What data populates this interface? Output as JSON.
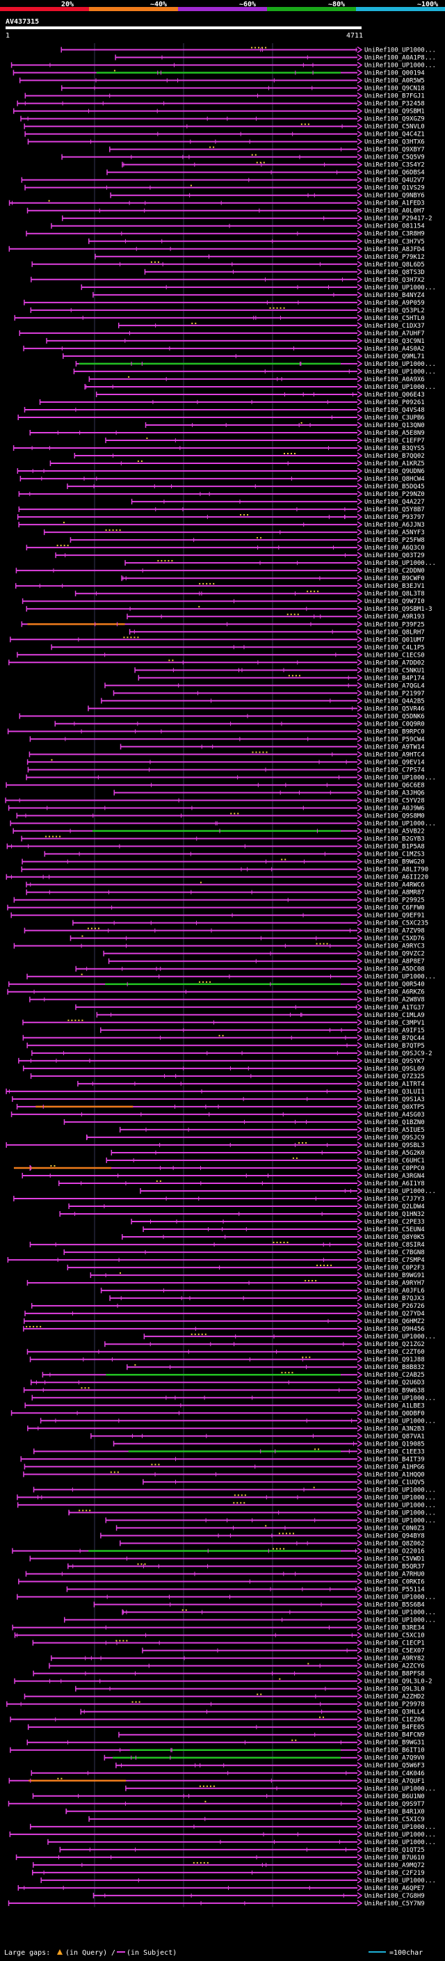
{
  "chart_data": {
    "type": "alignment-coverage",
    "title": "AV437315",
    "scale": {
      "start_label": "1",
      "end_label": "4711",
      "min": 1,
      "max": 4711
    },
    "identity_legend": [
      {
        "label": "20%",
        "color": "#e8102a"
      },
      {
        "label": "~40%",
        "color": "#f07c1c"
      },
      {
        "label": "~60%",
        "color": "#a02bd1"
      },
      {
        "label": "~80%",
        "color": "#1aa81a"
      },
      {
        "label": "~100%",
        "color": "#1fb2d8"
      }
    ],
    "hits": [
      "UniRef100_UP1000...",
      "UniRef100_A0A1P8...",
      "UniRef100_UP1000...",
      "UniRef100_Q00194",
      "UniRef100_A0R5W5",
      "UniRef100_Q9CN18",
      "UniRef100_B7FGJ1",
      "UniRef100_P32458",
      "UniRef100_Q9SBM1",
      "UniRef100_Q9XGZ9",
      "UniRef100_C5NVL0",
      "UniRef100_Q4C4Z1",
      "UniRef100_Q3HTX6",
      "UniRef100_Q9XBY7",
      "UniRef100_C5Q5V9",
      "UniRef100_C3S4Y2",
      "UniRef100_Q6DBS4",
      "UniRef100_Q4U2V7",
      "UniRef100_Q1VS29",
      "UniRef100_Q9NBY6",
      "UniRef100_A1FED3",
      "UniRef100_A0L0H7",
      "UniRef100_P29417-2",
      "UniRef100_O81154",
      "UniRef100_C3R8H9",
      "UniRef100_C3H7V5",
      "UniRef100_A8JFD4",
      "UniRef100_P79K12",
      "UniRef100_Q8L6D5",
      "UniRef100_Q8TS3D",
      "UniRef100_Q3H7X2",
      "UniRef100_UP1000...",
      "UniRef100_B4NYZ4",
      "UniRef100_A9P059",
      "UniRef100_Q53PL2",
      "UniRef100_C5HTL0",
      "UniRef100_C1DX37",
      "UniRef100_A7UHF7",
      "UniRef100_Q3C9N1",
      "UniRef100_A4S0A2",
      "UniRef100_Q9ML71",
      "UniRef100_UP1000...",
      "UniRef100_UP1000...",
      "UniRef100_A0A9X6",
      "UniRef100_UP1000...",
      "UniRef100_Q06E43",
      "UniRef100_P09261",
      "UniRef100_Q4VS48",
      "UniRef100_C3UPB6",
      "UniRef100_Q13QN0",
      "UniRef100_A5E8N9",
      "UniRef100_C1EFP7",
      "UniRef100_B3QYS5",
      "UniRef100_B7QQ02",
      "UniRef100_A1KRZ5",
      "UniRef100_Q9UDN6",
      "UniRef100_Q8HCW4",
      "UniRef100_B5DQ45",
      "UniRef100_P29NZ0",
      "UniRef100_Q4A227",
      "UniRef100_Q5Y8B7",
      "UniRef100_P93797",
      "UniRef100_A6JJN3",
      "UniRef100_A5NYF3",
      "UniRef100_P25FW8",
      "UniRef100_A6Q3C0",
      "UniRef100_Q03T29",
      "UniRef100_UP1000...",
      "UniRef100_C2DDN0",
      "UniRef100_B9CWF0",
      "UniRef100_B3EJV1",
      "UniRef100_Q8L3T8",
      "UniRef100_Q9W7I0",
      "UniRef100_Q9SBM1-3",
      "UniRef100_A9R193",
      "UniRef100_P39F25",
      "UniRef100_Q8LRH7",
      "UniRef100_Q01UM7",
      "UniRef100_C4L1P5",
      "UniRef100_C1ECS0",
      "UniRef100_A7DD02",
      "UniRef100_C5NKU1",
      "UniRef100_B4P174",
      "UniRef100_A7QGL4",
      "UniRef100_P21997",
      "UniRef100_Q4A2B5",
      "UniRef100_Q5VR46",
      "UniRef100_Q5DNK6",
      "UniRef100_C0Q9R0",
      "UniRef100_B9RPC0",
      "UniRef100_P59CW4",
      "UniRef100_A9TW14",
      "UniRef100_A9HTC4",
      "UniRef100_Q9EV14",
      "UniRef100_C7PS74",
      "UniRef100_UP1000...",
      "UniRef100_Q6C6E8",
      "UniRef100_A3JHQ6",
      "UniRef100_C5YV28",
      "UniRef100_A0J9W6",
      "UniRef100_Q9S8M0",
      "UniRef100_UP1000...",
      "UniRef100_A5VB22",
      "UniRef100_B2GYB3",
      "UniRef100_B1P5A8",
      "UniRef100_C1MZS3",
      "UniRef100_B9WG20",
      "UniRef100_A8LI790",
      "UniRef100_A6II220",
      "UniRef100_A4RWC6",
      "UniRef100_A8MR87",
      "UniRef100_P29925",
      "UniRef100_C6FFW0",
      "UniRef100_Q9EF91",
      "UniRef100_C5XC235",
      "UniRef100_A7ZV98",
      "UniRef100_C5XD76",
      "UniRef100_A9RYC3",
      "UniRef100_Q9VZC2",
      "UniRef100_A8P8E7",
      "UniRef100_A5DC08",
      "UniRef100_UP1000...",
      "UniRef100_Q0R540",
      "UniRef100_A6RKZ6",
      "UniRef100_A2W8V8",
      "UniRef100_A1TG37",
      "UniRef100_C1MLA9",
      "UniRef100_C3MPV1",
      "UniRef100_A9IF15",
      "UniRef100_B7QC44",
      "UniRef100_B7QTP5",
      "UniRef100_Q9SJC9-2",
      "UniRef100_Q9SYK7",
      "UniRef100_Q9SL09",
      "UniRef100_Q7Z325",
      "UniRef100_A1TRT4",
      "UniRef100_Q3LUI1",
      "UniRef100_Q9S1A3",
      "UniRef100_Q0XTP5",
      "UniRef100_A4SG03",
      "UniRef100_Q1BZN0",
      "UniRef100_A5IUE5",
      "UniRef100_Q9SJC9",
      "UniRef100_Q9SBL3",
      "UniRef100_A5G2K0",
      "UniRef100_C6UHC1",
      "UniRef100_C0PPC0",
      "UniRef100_A3RGN4",
      "UniRef100_A6I1Y8",
      "UniRef100_UP1000...",
      "UniRef100_C7J7Y3",
      "UniRef100_Q2LDW4",
      "UniRef100_Q1HN32",
      "UniRef100_C2PE33",
      "UniRef100_C5EUN4",
      "UniRef100_Q8Y0K5",
      "UniRef100_C8SIR4",
      "UniRef100_C7BGN8",
      "UniRef100_C7SMP4",
      "UniRef100_C0P2F3",
      "UniRef100_B9WG91",
      "UniRef100_A9RYH7",
      "UniRef100_A0JFL6",
      "UniRef100_B7QJX3",
      "UniRef100_P26726",
      "UniRef100_Q27YD4",
      "UniRef100_Q6HMZ2",
      "UniRef100_Q9H456",
      "UniRef100_UP1000...",
      "UniRef100_Q21ZG2",
      "UniRef100_C2ZT60",
      "UniRef100_Q91J88",
      "UniRef100_B8B832",
      "UniRef100_C2AB25",
      "UniRef100_Q2U6D3",
      "UniRef100_B9W638",
      "UniRef100_UP1000...",
      "UniRef100_A1LBE3",
      "UniRef100_Q0DBF0",
      "UniRef100_UP1000...",
      "UniRef100_A3N2B3",
      "UniRef100_Q87VA1",
      "UniRef100_Q19085",
      "UniRef100_C1EE33",
      "UniRef100_B4IT39",
      "UniRef100_A1HPG6",
      "UniRef100_A1HQQ0",
      "UniRef100_C1UQV5",
      "UniRef100_UP1000...",
      "UniRef100_UP1000...",
      "UniRef100_UP1000...",
      "UniRef100_UP1000...",
      "UniRef100_UP1000...",
      "UniRef100_C0N0Z3",
      "UniRef100_Q94BY8",
      "UniRef100_Q8Z062",
      "UniRef100_O22016",
      "UniRef100_C5VWD1",
      "UniRef100_B5QR37",
      "UniRef100_A7RHU0",
      "UniRef100_C0RKI6",
      "UniRef100_P55114",
      "UniRef100_UP1000...",
      "UniRef100_B5S6B4",
      "UniRef100_UP1000...",
      "UniRef100_UP1000...",
      "UniRef100_B3RE34",
      "UniRef100_C5XC10",
      "UniRef100_C1ECP1",
      "UniRef100_C5EX07",
      "UniRef100_A9RY82",
      "UniRef100_A2ZCY6",
      "UniRef100_B8PFS8",
      "UniRef100_Q9L3L0-2",
      "UniRef100_Q9L3L0",
      "UniRef100_A2ZHD2",
      "UniRef100_P29978",
      "UniRef100_Q3HLL4",
      "UniRef100_C1EZ06",
      "UniRef100_B4FE05",
      "UniRef100_B4FCN9",
      "UniRef100_B9WG31",
      "UniRef100_B6IT10",
      "UniRef100_A7Q9V0",
      "UniRef100_Q5W6F3",
      "UniRef100_C4K046",
      "UniRef100_A7QUF1",
      "UniRef100_UP1000...",
      "UniRef100_B6U1N0",
      "UniRef100_Q9S9T7",
      "UniRef100_B4R1X0",
      "UniRef100_C5XIC9",
      "UniRef100_UP1000...",
      "UniRef100_UP1000...",
      "UniRef100_UP1000...",
      "UniRef100_Q1QT25",
      "UniRef100_B7U610",
      "UniRef100_A9MQ72",
      "UniRef100_C2F219",
      "UniRef100_UP1000...",
      "UniRef100_A6QPE7",
      "UniRef100_C7G8H9",
      "UniRef100_C5Y7N9"
    ],
    "legend": {
      "gaps_label": "Large gaps:",
      "in_query_label": "(in Query)",
      "in_subject_label": "(in Subject)",
      "gt100_label": "=100char"
    }
  }
}
